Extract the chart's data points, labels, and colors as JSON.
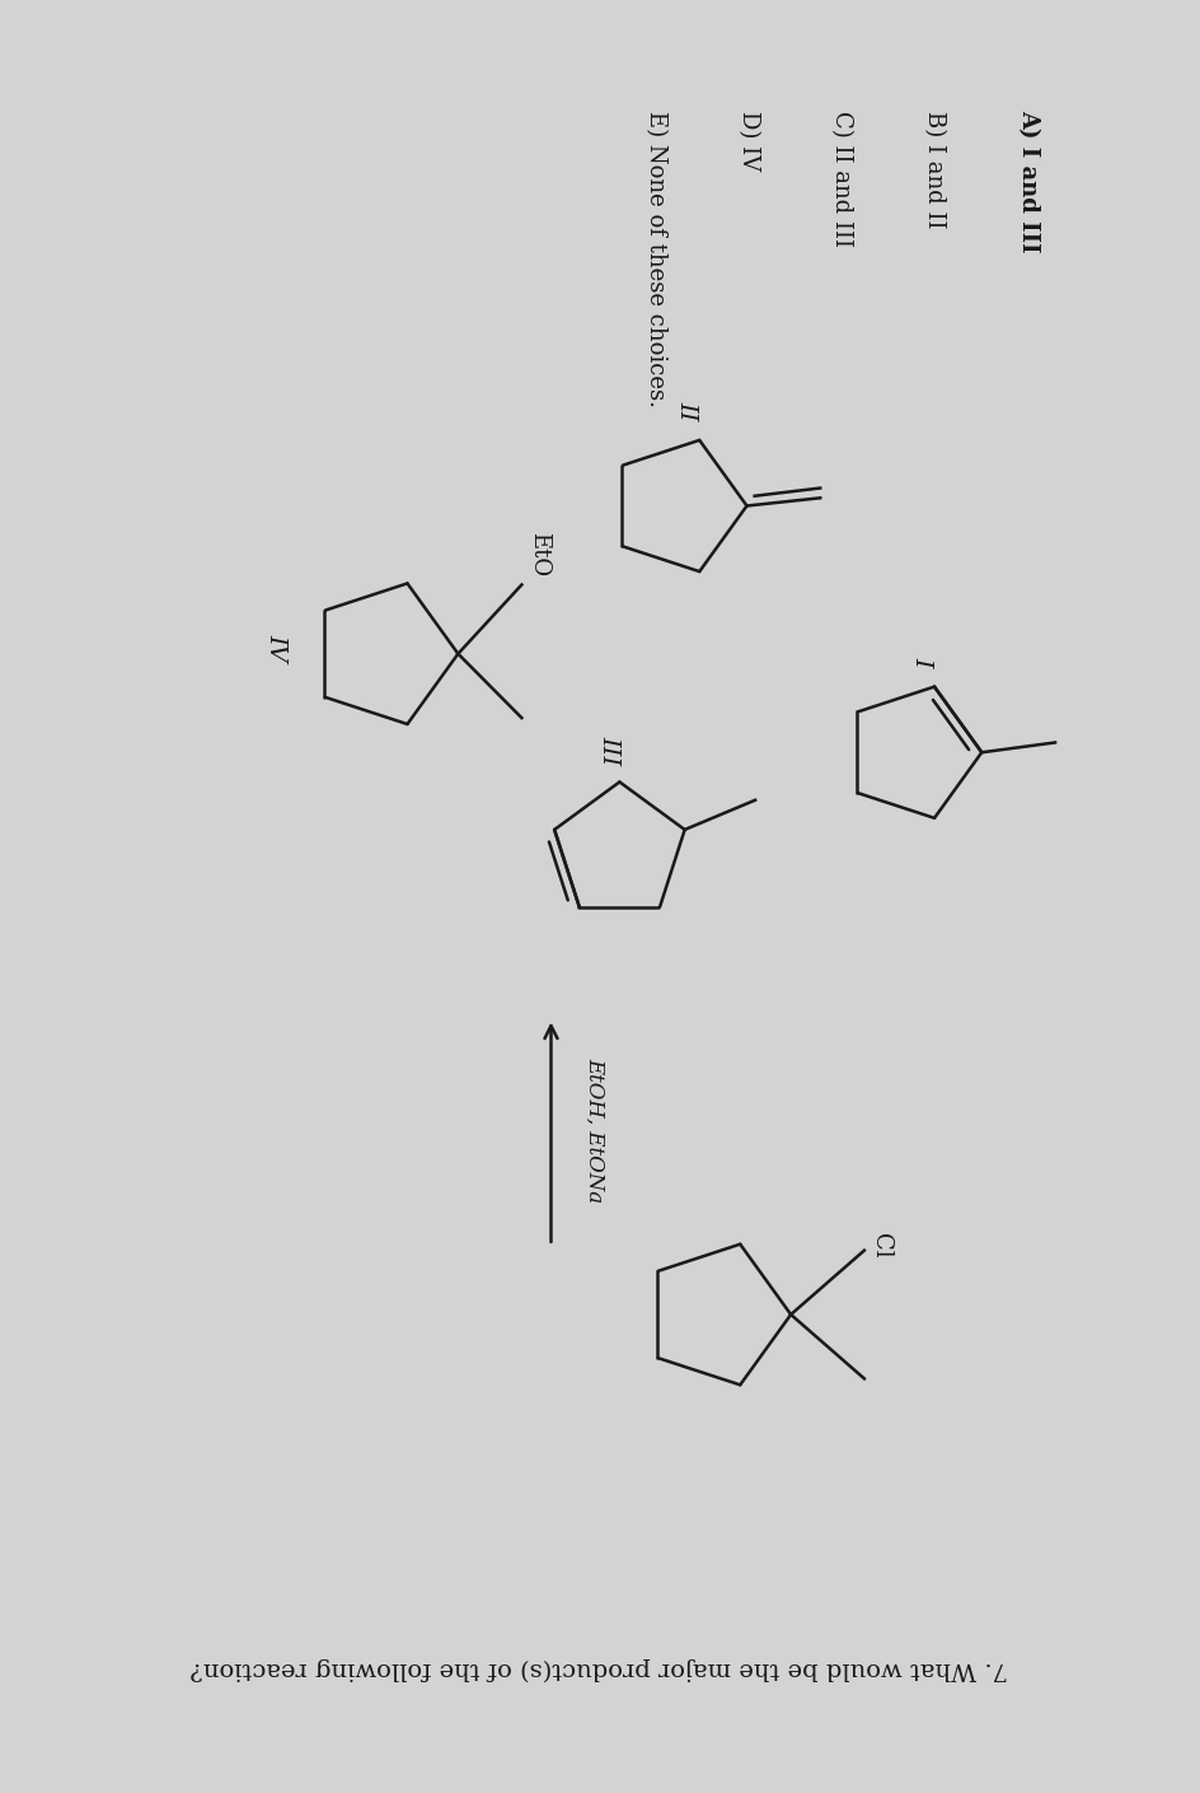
{
  "title": "7. What would be the major product(s) of the following reaction?",
  "reaction_conditions": "EtOH, EtONa",
  "choices": [
    "A) I and III",
    "B) I and II",
    "C) II and III",
    "D) IV",
    "E) None of these choices."
  ],
  "bg_color": "#d3d3d3",
  "text_color": "#1a1a1a",
  "line_color": "#1a1a1a",
  "lw": 1.8
}
